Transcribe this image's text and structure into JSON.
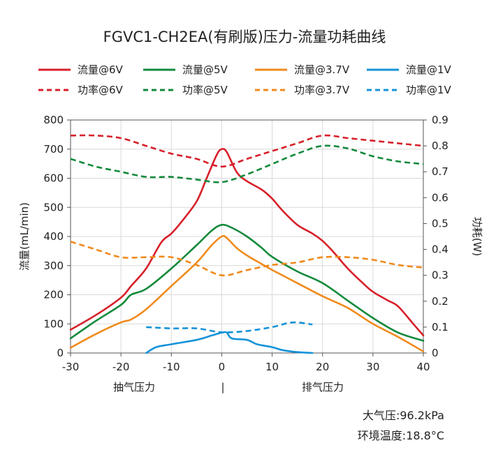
{
  "chart_data": {
    "type": "line",
    "title": "FGVC1-CH2EA(有刷版)压力-流量功耗曲线",
    "ylabel": "流量(mL/min)",
    "y2label": "功耗(W)",
    "xlim": [
      -30,
      40
    ],
    "ylim": [
      0,
      800
    ],
    "y2lim": [
      0,
      0.9
    ],
    "xticks": [
      -30,
      -20,
      -10,
      0,
      10,
      20,
      30,
      40
    ],
    "yticks": [
      0,
      100,
      200,
      300,
      400,
      500,
      600,
      700,
      800
    ],
    "y2ticks": [
      0,
      0.1,
      0.2,
      0.3,
      0.4,
      0.5,
      0.6,
      0.7,
      0.8,
      0.9
    ],
    "y2tick_labels": [
      "0",
      "0.1",
      "0.2",
      "0.3",
      "0.4",
      "0.5",
      "0.6",
      "0.7",
      "0.8",
      "0.9"
    ],
    "x_region_labels": {
      "left": "抽气压力",
      "divider": "|",
      "right": "排气压力"
    },
    "grid": true,
    "legend_position": "top",
    "series": [
      {
        "name": "流量@6V",
        "axis": "left",
        "style": "solid",
        "color": "#d7202a",
        "x": [
          -30,
          -25,
          -20,
          -18,
          -15,
          -12,
          -10,
          -8,
          -5,
          -3,
          -1,
          0,
          1,
          3,
          5,
          8,
          10,
          12,
          15,
          18,
          20,
          22,
          25,
          28,
          30,
          33,
          35,
          38,
          40
        ],
        "y": [
          80,
          130,
          190,
          230,
          290,
          380,
          410,
          450,
          520,
          600,
          680,
          700,
          690,
          620,
          590,
          560,
          530,
          490,
          440,
          410,
          385,
          350,
          290,
          240,
          210,
          180,
          160,
          100,
          60
        ]
      },
      {
        "name": "流量@5V",
        "axis": "left",
        "style": "solid",
        "color": "#128a3c",
        "x": [
          -30,
          -25,
          -20,
          -18,
          -15,
          -10,
          -5,
          -2,
          0,
          2,
          5,
          8,
          10,
          15,
          20,
          25,
          30,
          35,
          40
        ],
        "y": [
          50,
          110,
          165,
          200,
          220,
          290,
          370,
          420,
          440,
          430,
          400,
          360,
          330,
          280,
          240,
          180,
          120,
          70,
          42
        ]
      },
      {
        "name": "流量@3.7V",
        "axis": "left",
        "style": "solid",
        "color": "#f08a1c",
        "x": [
          -30,
          -25,
          -20,
          -18,
          -15,
          -10,
          -5,
          -2,
          0,
          1,
          3,
          5,
          8,
          10,
          15,
          20,
          25,
          30,
          35,
          40
        ],
        "y": [
          18,
          65,
          105,
          115,
          150,
          230,
          310,
          370,
          400,
          395,
          360,
          335,
          305,
          285,
          240,
          195,
          155,
          100,
          55,
          5
        ]
      },
      {
        "name": "流量@1V",
        "axis": "left",
        "style": "solid",
        "color": "#1593d9",
        "x": [
          -15,
          -13,
          -10,
          -5,
          -2,
          0,
          1,
          2,
          5,
          7,
          10,
          12,
          15,
          18
        ],
        "y": [
          0,
          20,
          30,
          45,
          60,
          70,
          70,
          50,
          45,
          30,
          20,
          10,
          3,
          0
        ]
      },
      {
        "name": "功率@6V",
        "axis": "right",
        "style": "dash",
        "color": "#d7202a",
        "x": [
          -30,
          -25,
          -20,
          -15,
          -10,
          -5,
          0,
          5,
          10,
          15,
          20,
          25,
          30,
          35,
          40
        ],
        "y": [
          0.84,
          0.84,
          0.83,
          0.8,
          0.77,
          0.75,
          0.72,
          0.75,
          0.78,
          0.81,
          0.84,
          0.83,
          0.82,
          0.81,
          0.8
        ]
      },
      {
        "name": "功率@5V",
        "axis": "right",
        "style": "dash",
        "color": "#128a3c",
        "x": [
          -30,
          -25,
          -20,
          -15,
          -10,
          -5,
          0,
          5,
          10,
          15,
          20,
          25,
          30,
          35,
          40
        ],
        "y": [
          0.75,
          0.72,
          0.7,
          0.68,
          0.68,
          0.67,
          0.66,
          0.69,
          0.73,
          0.77,
          0.8,
          0.79,
          0.76,
          0.74,
          0.73
        ]
      },
      {
        "name": "功率@3.7V",
        "axis": "right",
        "style": "dash",
        "color": "#f08a1c",
        "x": [
          -30,
          -25,
          -20,
          -15,
          -10,
          -5,
          0,
          5,
          10,
          15,
          20,
          25,
          30,
          35,
          40
        ],
        "y": [
          0.43,
          0.4,
          0.37,
          0.37,
          0.37,
          0.34,
          0.3,
          0.32,
          0.34,
          0.35,
          0.37,
          0.37,
          0.36,
          0.34,
          0.33
        ]
      },
      {
        "name": "功率@1V",
        "axis": "right",
        "style": "dash",
        "color": "#1593d9",
        "x": [
          -15,
          -10,
          -5,
          0,
          5,
          10,
          13,
          15,
          18
        ],
        "y": [
          0.1,
          0.095,
          0.095,
          0.08,
          0.085,
          0.1,
          0.115,
          0.118,
          0.11
        ]
      }
    ]
  },
  "notes": {
    "pressure": "大气压:96.2kPa",
    "temperature": "环境温度:18.8°C"
  }
}
